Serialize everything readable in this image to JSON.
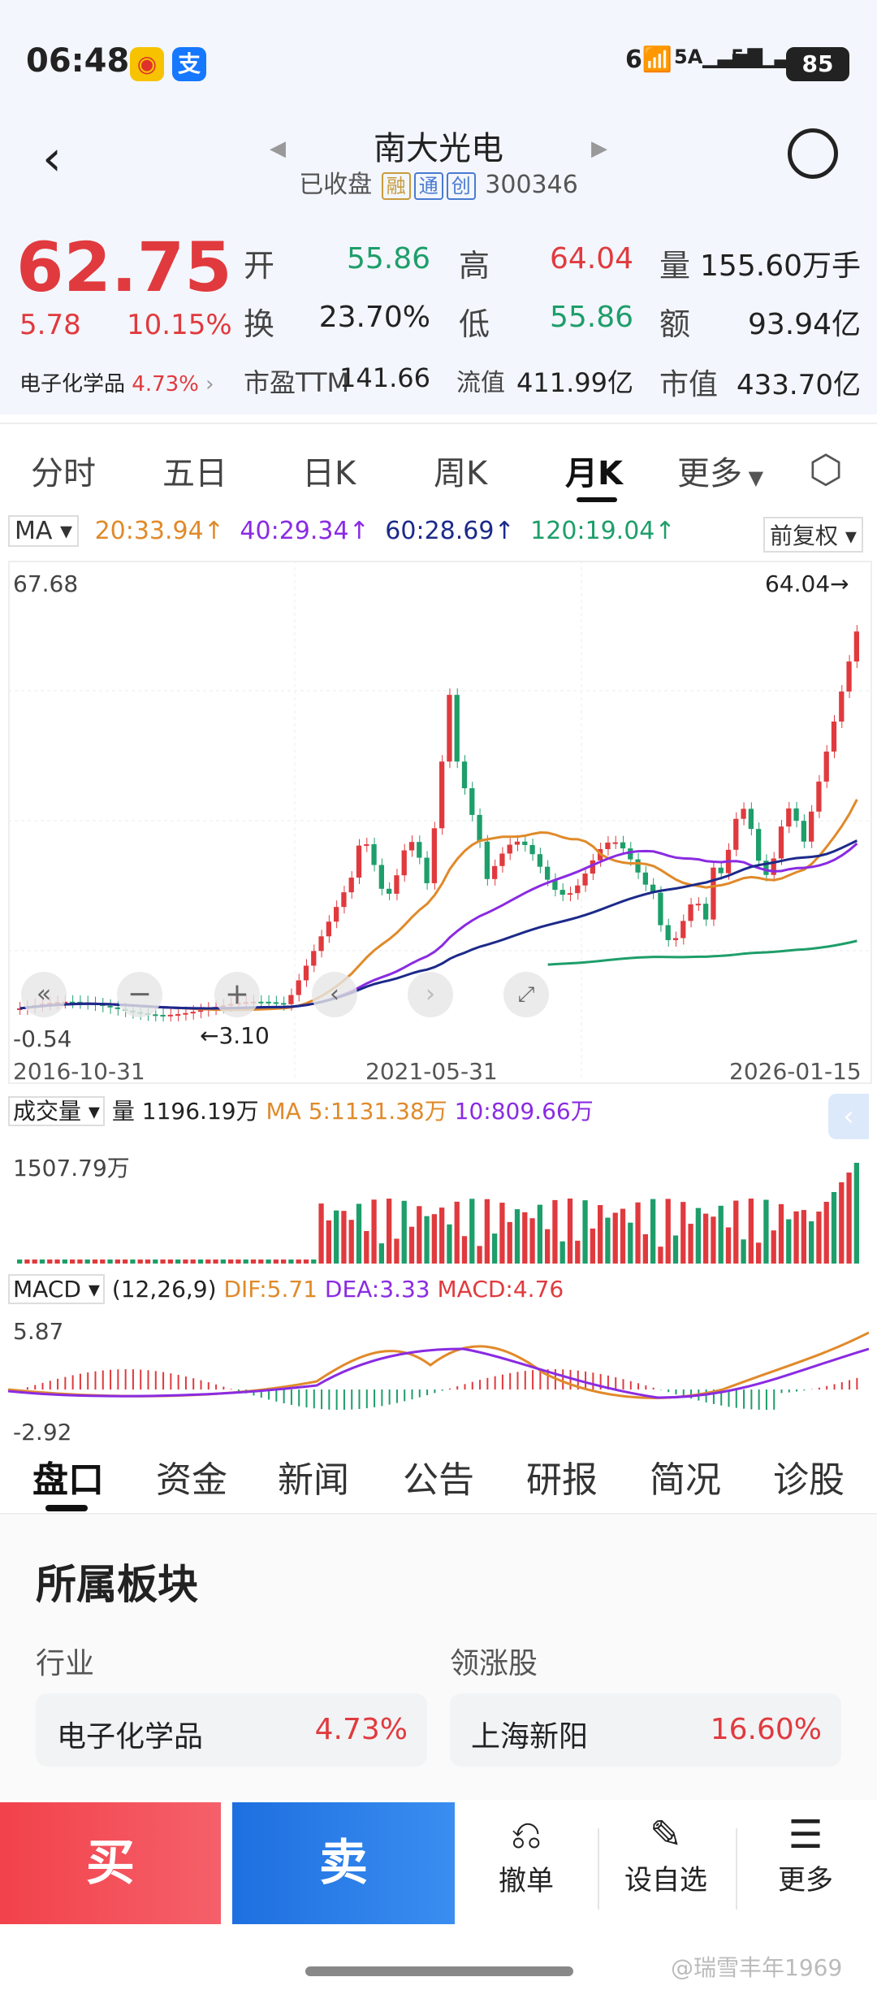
{
  "status": {
    "time": "06:48",
    "battery": "85",
    "net1": "5A",
    "net2": "5A",
    "wifi": "6"
  },
  "header": {
    "name": "南大光电",
    "status": "已收盘",
    "tags": [
      "融",
      "通",
      "创"
    ],
    "code": "300346"
  },
  "quote": {
    "price": "62.75",
    "change": "5.78",
    "change_pct": "10.15%",
    "sector_name": "电子化学品",
    "sector_pct": "4.73%",
    "open_label": "开",
    "open": "55.86",
    "high_label": "高",
    "high": "64.04",
    "volume_label": "量",
    "volume": "155.60万手",
    "turnover_label": "换",
    "turnover": "23.70%",
    "low_label": "低",
    "low": "55.86",
    "amount_label": "额",
    "amount": "93.94亿",
    "pe_label": "市盈TTM",
    "pe": "141.66",
    "float_label": "流值",
    "float_cap": "411.99亿",
    "cap_label": "市值",
    "market_cap": "433.70亿"
  },
  "tabs": [
    "分时",
    "五日",
    "日K",
    "周K",
    "月K",
    "更多"
  ],
  "active_tab": "月K",
  "ma": {
    "label": "MA",
    "ma20": "20:33.94↑",
    "ma40": "40:29.34↑",
    "ma60": "60:28.69↑",
    "ma120": "120:19.04↑",
    "adjust": "前复权"
  },
  "kchart": {
    "max_label": "67.68",
    "min_label": "-0.54",
    "high_mark": "64.04→",
    "low_mark": "←3.10",
    "dates": [
      "2016-10-31",
      "2021-05-31",
      "2026-01-15"
    ]
  },
  "volume": {
    "label": "成交量",
    "vol": "量 1196.19万",
    "ma5": "MA 5:1131.38万",
    "ma10": "10:809.66万",
    "max": "1507.79万"
  },
  "macd": {
    "label": "MACD",
    "params": "(12,26,9)",
    "dif": "DIF:5.71",
    "dea": "DEA:3.33",
    "macd": "MACD:4.76",
    "max": "5.87",
    "min": "-2.92"
  },
  "chart_data": {
    "type": "line",
    "x": [
      "2016-10-31",
      "2021-05-31",
      "2026-01-15"
    ],
    "series": [
      {
        "name": "MA20",
        "values": [
          3.5,
          20,
          33.94
        ]
      },
      {
        "name": "MA40",
        "values": [
          3.8,
          12,
          29.34
        ]
      },
      {
        "name": "MA60",
        "values": [
          3.9,
          9,
          28.69
        ]
      },
      {
        "name": "MA120",
        "values": [
          null,
          null,
          19.04
        ]
      }
    ],
    "ylim": [
      -0.54,
      67.68
    ],
    "title": "",
    "xlabel": "",
    "ylabel": ""
  },
  "bottom_tabs": [
    "盘口",
    "资金",
    "新闻",
    "公告",
    "研报",
    "简况",
    "诊股"
  ],
  "section": {
    "title": "所属板块",
    "industry_label": "行业",
    "leader_label": "领涨股",
    "industry_name": "电子化学品",
    "industry_pct": "4.73%",
    "leader_name": "上海新阳",
    "leader_pct": "16.60%"
  },
  "actions": {
    "buy": "买",
    "sell": "卖",
    "cancel": "撤单",
    "watch": "设自选",
    "more": "更多"
  },
  "watermark": "@瑞雪丰年1969",
  "colors": {
    "up": "#e03a3e",
    "down": "#1e9e6a",
    "buy": "#f2424b",
    "sell": "#2a7be0"
  }
}
